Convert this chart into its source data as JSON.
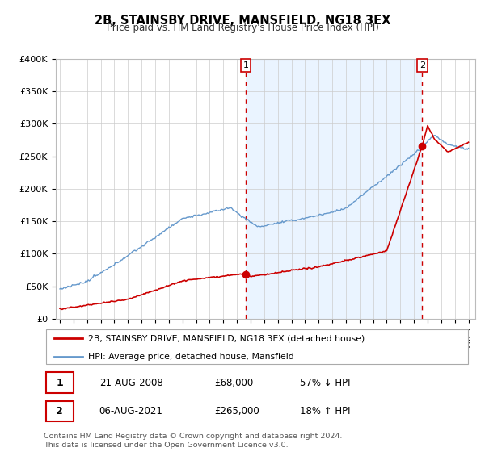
{
  "title": "2B, STAINSBY DRIVE, MANSFIELD, NG18 3EX",
  "subtitle": "Price paid vs. HM Land Registry's House Price Index (HPI)",
  "ylim": [
    0,
    400000
  ],
  "yticks": [
    0,
    50000,
    100000,
    150000,
    200000,
    250000,
    300000,
    350000,
    400000
  ],
  "ytick_labels": [
    "£0",
    "£50K",
    "£100K",
    "£150K",
    "£200K",
    "£250K",
    "£300K",
    "£350K",
    "£400K"
  ],
  "legend_line1": "2B, STAINSBY DRIVE, MANSFIELD, NG18 3EX (detached house)",
  "legend_line2": "HPI: Average price, detached house, Mansfield",
  "annotation1_date": "21-AUG-2008",
  "annotation1_price": "£68,000",
  "annotation1_hpi": "57% ↓ HPI",
  "annotation2_date": "06-AUG-2021",
  "annotation2_price": "£265,000",
  "annotation2_hpi": "18% ↑ HPI",
  "footer": "Contains HM Land Registry data © Crown copyright and database right 2024.\nThis data is licensed under the Open Government Licence v3.0.",
  "red_color": "#cc0000",
  "blue_color": "#6699cc",
  "blue_fill_color": "#ddeeff",
  "grid_color": "#cccccc",
  "sale1_year": 2008.645,
  "sale1_price": 68000,
  "sale2_year": 2021.597,
  "sale2_price": 265000
}
